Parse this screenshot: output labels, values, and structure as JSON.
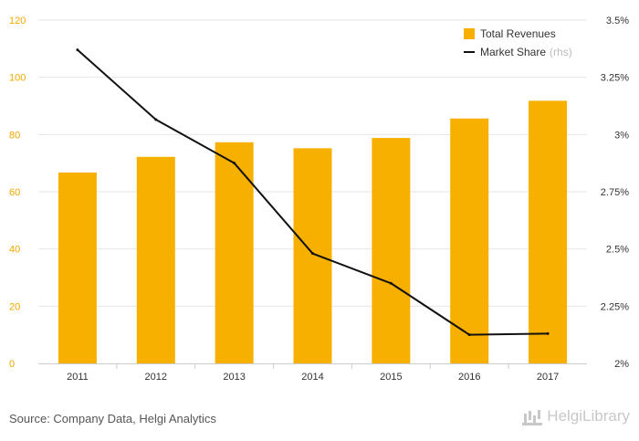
{
  "chart_data": {
    "type": "bar",
    "categories": [
      "2011",
      "2012",
      "2013",
      "2014",
      "2015",
      "2016",
      "2017"
    ],
    "series": [
      {
        "name": "Total Revenues",
        "type": "bar",
        "axis": "left",
        "color": "#f7b000",
        "values": [
          66.7,
          72.2,
          77.3,
          75.2,
          78.8,
          85.6,
          91.8
        ]
      },
      {
        "name": "Market Share",
        "type": "line",
        "axis": "right",
        "color": "#111111",
        "values": [
          3.37,
          3.065,
          2.875,
          2.48,
          2.35,
          2.125,
          2.13
        ]
      }
    ],
    "left_axis": {
      "min": 0,
      "max": 120,
      "ticks": [
        "0",
        "20",
        "40",
        "60",
        "80",
        "100",
        "120"
      ],
      "color": "#f0a800"
    },
    "right_axis": {
      "min": 2,
      "max": 3.5,
      "ticks": [
        "2%",
        "2.25%",
        "2.5%",
        "2.75%",
        "3%",
        "3.25%",
        "3.5%"
      ]
    },
    "grid": true,
    "legend_placement": "top-right",
    "legend": {
      "bar_label": "Total Revenues",
      "line_label": "Market Share",
      "line_note": "(rhs)"
    }
  },
  "footer": {
    "source": "Source: Company Data, Helgi Analytics",
    "logo_text": "HelgiLibrary"
  }
}
